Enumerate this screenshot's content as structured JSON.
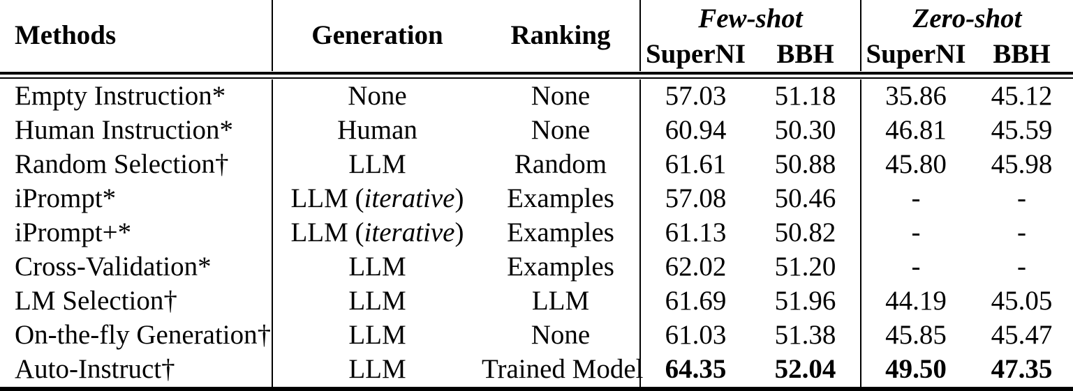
{
  "table": {
    "headers": {
      "methods": "Methods",
      "generation": "Generation",
      "ranking": "Ranking",
      "few_shot": "Few-shot",
      "zero_shot": "Zero-shot",
      "fewshot_superni": "SuperNI",
      "fewshot_bbh": "BBH",
      "zeroshot_superni": "SuperNI",
      "zeroshot_bbh": "BBH"
    },
    "rows": [
      {
        "method": "Empty Instruction*",
        "generation": "None",
        "ranking": "None",
        "values": [
          "57.03",
          "51.18",
          "35.86",
          "45.12"
        ],
        "values_bold": false
      },
      {
        "method": "Human Instruction*",
        "generation": "Human",
        "ranking": "None",
        "values": [
          "60.94",
          "50.30",
          "46.81",
          "45.59"
        ],
        "values_bold": false
      },
      {
        "method": "Random Selection†",
        "generation": "LLM",
        "ranking": "Random",
        "values": [
          "61.61",
          "50.88",
          "45.80",
          "45.98"
        ],
        "values_bold": false
      },
      {
        "method": "iPrompt*",
        "generation": "LLM (*iterative*)",
        "ranking": "Examples",
        "values": [
          "57.08",
          "50.46",
          "-",
          "-"
        ],
        "values_bold": false
      },
      {
        "method": "iPrompt+*",
        "generation": "LLM (*iterative*)",
        "ranking": "Examples",
        "values": [
          "61.13",
          "50.82",
          "-",
          "-"
        ],
        "values_bold": false
      },
      {
        "method": "Cross-Validation*",
        "generation": "LLM",
        "ranking": "Examples",
        "values": [
          "62.02",
          "51.20",
          "-",
          "-"
        ],
        "values_bold": false
      },
      {
        "method": "LM Selection†",
        "generation": "LLM",
        "ranking": "LLM",
        "values": [
          "61.69",
          "51.96",
          "44.19",
          "45.05"
        ],
        "values_bold": false
      },
      {
        "method": "On-the-fly Generation†",
        "generation": "LLM",
        "ranking": "None",
        "values": [
          "61.03",
          "51.38",
          "45.85",
          "45.47"
        ],
        "values_bold": false
      },
      {
        "method": "Auto-Instruct†",
        "generation": "LLM",
        "ranking": "Trained Model",
        "values": [
          "64.35",
          "52.04",
          "49.50",
          "47.35"
        ],
        "values_bold": true
      }
    ],
    "colors": {
      "text": "#000000",
      "background": "#ffffff",
      "rule": "#000000"
    }
  }
}
